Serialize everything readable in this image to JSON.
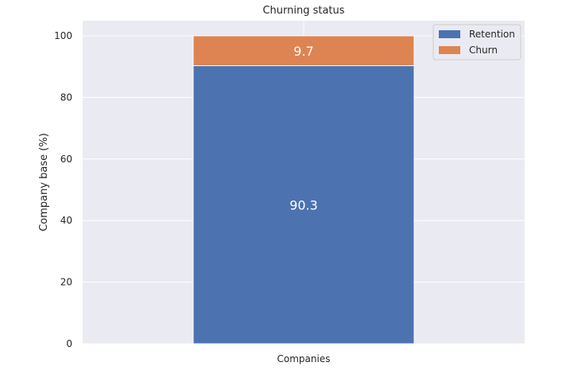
{
  "chart_data": {
    "type": "bar",
    "stacked": true,
    "title": "Churning status",
    "xlabel": "",
    "ylabel": "Company base (%)",
    "categories": [
      "Companies"
    ],
    "series": [
      {
        "name": "Retention",
        "values": [
          90.3
        ],
        "color": "#4c72b0",
        "labels": [
          "90.3"
        ]
      },
      {
        "name": "Churn",
        "values": [
          9.7
        ],
        "color": "#dd8452",
        "labels": [
          "9.7"
        ]
      }
    ],
    "ylim": [
      0,
      100
    ],
    "yticks": [
      "0",
      "20",
      "40",
      "60",
      "80",
      "100"
    ],
    "grid": true,
    "legend_position": "top-right",
    "background_color": "#eaeaf2",
    "grid_color": "#ffffff"
  }
}
